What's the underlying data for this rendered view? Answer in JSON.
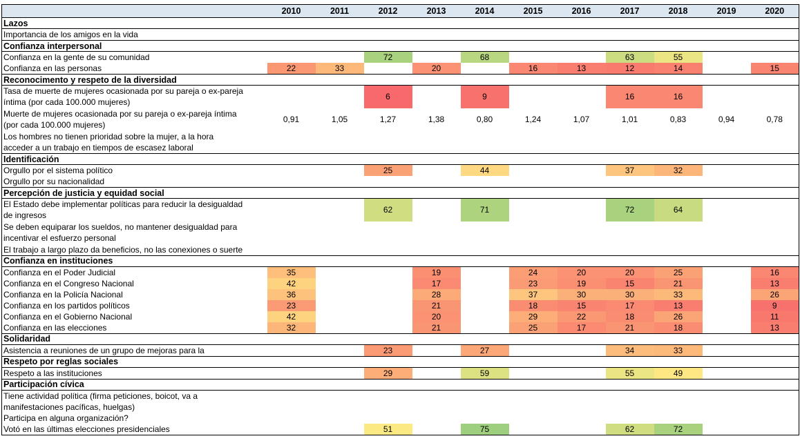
{
  "header": {
    "background": "#DCE6F1",
    "corner_label": ""
  },
  "chart_data": {
    "type": "heatmap",
    "years": [
      "2010",
      "2011",
      "2012",
      "2013",
      "2014",
      "2015",
      "2016",
      "2017",
      "2018",
      "2019",
      "2020"
    ],
    "colormap": {
      "stops": [
        {
          "value": 6,
          "color": "#F8696B"
        },
        {
          "value": 50,
          "color": "#FFEB84"
        },
        {
          "value": 90,
          "color": "#63BE7B"
        }
      ]
    },
    "sections": [
      {
        "title": "Lazos",
        "rows": [
          {
            "label": [
              "Importancia de los amigos en la vida"
            ],
            "cells": {}
          }
        ]
      },
      {
        "title": "Confianza interpersonal",
        "rows": [
          {
            "label": [
              "Confianza en la gente de su comunidad"
            ],
            "cells": {
              "2012": 72,
              "2014": 68,
              "2017": 63,
              "2018": 55
            }
          },
          {
            "label": [
              "Confianza en las personas"
            ],
            "cells": {
              "2010": 22,
              "2011": 33,
              "2013": 20,
              "2015": 16,
              "2016": 13,
              "2017": 12,
              "2018": 14,
              "2020": 15
            }
          }
        ]
      },
      {
        "title": "Reconocimento y respeto de la diversidad",
        "rows": [
          {
            "label": [
              "Tasa de muerte de mujeres ocasionada por su pareja o ex-pareja",
              "íntima (por cada 100.000 mujeres)"
            ],
            "cells": {
              "2012": 6,
              "2014": 9,
              "2017": 16,
              "2018": 16
            }
          },
          {
            "label": [
              "Muerte de mujeres ocasionada por su pareja o ex-pareja íntima",
              "(por cada 100.000 mujeres)"
            ],
            "plain": true,
            "cells": {
              "2010": "0,91",
              "2011": "1,05",
              "2012": "1,27",
              "2013": "1,38",
              "2014": "0,80",
              "2015": "1,24",
              "2016": "1,07",
              "2017": "1,01",
              "2018": "0,83",
              "2019": "0,94",
              "2020": "0,78"
            }
          },
          {
            "label": [
              "Los hombres no tienen prioridad sobre la mujer, a la hora",
              "acceder a un trabajo en tiempos de escasez laboral"
            ],
            "cells": {}
          }
        ]
      },
      {
        "title": "Identificación",
        "rows": [
          {
            "label": [
              "Orgullo por el sistema político"
            ],
            "cells": {
              "2012": 25,
              "2014": 44,
              "2017": 37,
              "2018": 32
            }
          },
          {
            "label": [
              "Orgullo por su nacionalidad"
            ],
            "cells": {}
          }
        ]
      },
      {
        "title": "Percepción de justicia y equidad social",
        "rows": [
          {
            "label": [
              "El Estado debe implementar políticas para reducir la desigualdad",
              "de ingresos"
            ],
            "cells": {
              "2012": 62,
              "2014": 71,
              "2017": 72,
              "2018": 64
            }
          },
          {
            "label": [
              "Se deben equiparar los sueldos, no mantener desigualdad para",
              "incentivar el esfuerzo personal"
            ],
            "cells": {}
          },
          {
            "label": [
              "El trabajo a largo plazo da beneficios, no las conexiones o suerte"
            ],
            "cells": {}
          }
        ]
      },
      {
        "title": "Confianza en instituciones",
        "rows": [
          {
            "label": [
              "Confianza en el Poder Judicial"
            ],
            "cells": {
              "2010": 35,
              "2013": 19,
              "2015": 24,
              "2016": 20,
              "2017": 20,
              "2018": 25,
              "2020": 16
            }
          },
          {
            "label": [
              "Confianza en el Congreso Nacional"
            ],
            "cells": {
              "2010": 42,
              "2013": 17,
              "2015": 23,
              "2016": 19,
              "2017": 15,
              "2018": 21,
              "2020": 13
            }
          },
          {
            "label": [
              "Confianza en la Policía Nacional"
            ],
            "cells": {
              "2010": 36,
              "2013": 28,
              "2015": 37,
              "2016": 30,
              "2017": 30,
              "2018": 33,
              "2020": 26
            }
          },
          {
            "label": [
              "Confianza en los partidos políticos"
            ],
            "cells": {
              "2010": 23,
              "2013": 21,
              "2015": 18,
              "2016": 15,
              "2017": 17,
              "2018": 13,
              "2020": 9
            }
          },
          {
            "label": [
              "Confianza en el Gobierno Nacional"
            ],
            "cells": {
              "2010": 42,
              "2013": 20,
              "2015": 29,
              "2016": 22,
              "2017": 18,
              "2018": 26,
              "2020": 11
            }
          },
          {
            "label": [
              "Confianza en las elecciones"
            ],
            "cells": {
              "2010": 32,
              "2013": 21,
              "2015": 25,
              "2016": 17,
              "2017": 21,
              "2018": 18,
              "2020": 13
            }
          }
        ]
      },
      {
        "title": "Solidaridad",
        "rows": [
          {
            "label": [
              "Asistencia a reuniones de un grupo de mejoras para la"
            ],
            "cells": {
              "2012": 23,
              "2014": 27,
              "2017": 34,
              "2018": 33
            }
          }
        ]
      },
      {
        "title": "Respeto por reglas sociales",
        "rows": [
          {
            "label": [
              "Respeto a las instituciones"
            ],
            "cells": {
              "2012": 29,
              "2014": 59,
              "2017": 55,
              "2018": 49
            }
          }
        ]
      },
      {
        "title": "Participación cívica",
        "rows": [
          {
            "label": [
              "Tiene actividad política (firma peticiones, boicot, va a",
              "manifestaciones pacíficas, huelgas)"
            ],
            "cells": {}
          },
          {
            "label": [
              "Participa en alguna organización?"
            ],
            "cells": {}
          },
          {
            "label": [
              "Votó en las últimas elecciones presidenciales"
            ],
            "cells": {
              "2012": 51,
              "2014": 75,
              "2017": 62,
              "2018": 72
            }
          }
        ]
      }
    ]
  }
}
